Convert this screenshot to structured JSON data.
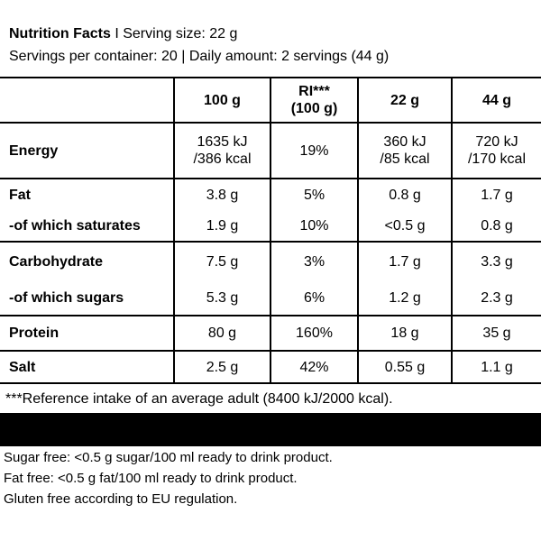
{
  "header": {
    "title": "Nutrition Facts",
    "serving_size": "I Serving size: 22 g",
    "servings_line": "Servings per container: 20 | Daily amount: 2 servings (44 g)"
  },
  "columns": {
    "per100": "100 g",
    "ri_line1": "RI***",
    "ri_line2": "(100 g)",
    "per22": "22 g",
    "per44": "44 g"
  },
  "rows": [
    {
      "label": "Energy",
      "per100": "1635 kJ\n/386 kcal",
      "ri": "19%",
      "per22": "360 kJ\n/85 kcal",
      "per44": "720 kJ\n/170 kcal"
    },
    {
      "label": "Fat",
      "per100": "3.8 g",
      "ri": "5%",
      "per22": "0.8 g",
      "per44": "1.7 g"
    },
    {
      "label": "-of which saturates",
      "per100": "1.9 g",
      "ri": "10%",
      "per22": "<0.5 g",
      "per44": "0.8 g"
    },
    {
      "label": "Carbohydrate",
      "per100": "7.5 g",
      "ri": "3%",
      "per22": "1.7 g",
      "per44": "3.3 g"
    },
    {
      "label": "-of which sugars",
      "per100": "5.3 g",
      "ri": "6%",
      "per22": "1.2 g",
      "per44": "2.3 g"
    },
    {
      "label": "Protein",
      "per100": "80 g",
      "ri": "160%",
      "per22": "18 g",
      "per44": "35 g"
    },
    {
      "label": "Salt",
      "per100": "2.5 g",
      "ri": "42%",
      "per22": "0.55 g",
      "per44": "1.1 g"
    }
  ],
  "reference_note": "***Reference intake of an average adult (8400 kJ/2000 kcal).",
  "footer": [
    "Sugar free: <0.5 g sugar/100 ml ready to drink product.",
    "Fat free: <0.5 g fat/100 ml ready to drink product.",
    "Gluten free according to EU regulation."
  ]
}
